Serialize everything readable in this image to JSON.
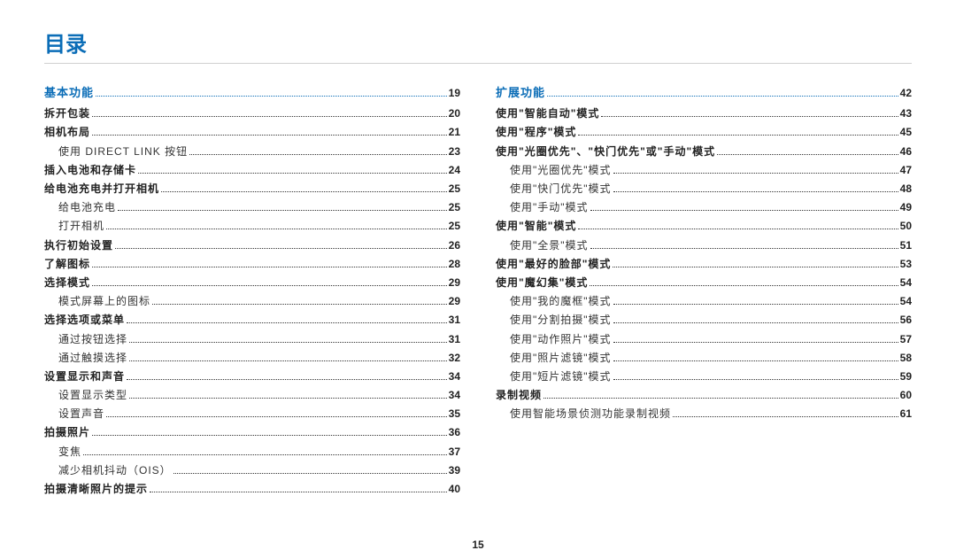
{
  "title": "目录",
  "page_number": "15",
  "colors": {
    "accent": "#0b6db7",
    "text": "#222222",
    "rule": "#d0d0d0",
    "background": "#ffffff"
  },
  "typography": {
    "title_fontsize_pt": 18,
    "section_fontsize_pt": 10,
    "entry_fontsize_pt": 9,
    "body_family": "Microsoft YaHei"
  },
  "columns": [
    {
      "section": {
        "label": "基本功能",
        "page": "19"
      },
      "items": [
        {
          "level": 1,
          "label": "拆开包装",
          "page": "20"
        },
        {
          "level": 1,
          "label": "相机布局",
          "page": "21"
        },
        {
          "level": 2,
          "label": "使用 DIRECT LINK 按钮",
          "page": "23"
        },
        {
          "level": 1,
          "label": "插入电池和存储卡",
          "page": "24"
        },
        {
          "level": 1,
          "label": "给电池充电并打开相机",
          "page": "25"
        },
        {
          "level": 2,
          "label": "给电池充电",
          "page": "25"
        },
        {
          "level": 2,
          "label": "打开相机",
          "page": "25"
        },
        {
          "level": 1,
          "label": "执行初始设置",
          "page": "26"
        },
        {
          "level": 1,
          "label": "了解图标",
          "page": "28"
        },
        {
          "level": 1,
          "label": "选择模式",
          "page": "29"
        },
        {
          "level": 2,
          "label": "模式屏幕上的图标",
          "page": "29"
        },
        {
          "level": 1,
          "label": "选择选项或菜单",
          "page": "31"
        },
        {
          "level": 2,
          "label": "通过按钮选择",
          "page": "31"
        },
        {
          "level": 2,
          "label": "通过触摸选择",
          "page": "32"
        },
        {
          "level": 1,
          "label": "设置显示和声音",
          "page": "34"
        },
        {
          "level": 2,
          "label": "设置显示类型",
          "page": "34"
        },
        {
          "level": 2,
          "label": "设置声音",
          "page": "35"
        },
        {
          "level": 1,
          "label": "拍摄照片",
          "page": "36"
        },
        {
          "level": 2,
          "label": "变焦",
          "page": "37"
        },
        {
          "level": 2,
          "label": "减少相机抖动（OIS）",
          "page": "39"
        },
        {
          "level": 1,
          "label": "拍摄清晰照片的提示",
          "page": "40"
        }
      ]
    },
    {
      "section": {
        "label": "扩展功能",
        "page": "42"
      },
      "items": [
        {
          "level": 1,
          "label": "使用\"智能自动\"模式",
          "page": "43"
        },
        {
          "level": 1,
          "label": "使用\"程序\"模式",
          "page": "45"
        },
        {
          "level": 1,
          "label": "使用\"光圈优先\"、\"快门优先\"或\"手动\"模式",
          "page": "46"
        },
        {
          "level": 2,
          "label": "使用\"光圈优先\"模式",
          "page": "47"
        },
        {
          "level": 2,
          "label": "使用\"快门优先\"模式",
          "page": "48"
        },
        {
          "level": 2,
          "label": "使用\"手动\"模式",
          "page": "49"
        },
        {
          "level": 1,
          "label": "使用\"智能\"模式",
          "page": "50"
        },
        {
          "level": 2,
          "label": "使用\"全景\"模式",
          "page": "51"
        },
        {
          "level": 1,
          "label": "使用\"最好的脸部\"模式",
          "page": "53"
        },
        {
          "level": 1,
          "label": "使用\"魔幻集\"模式",
          "page": "54"
        },
        {
          "level": 2,
          "label": "使用\"我的魔框\"模式",
          "page": "54"
        },
        {
          "level": 2,
          "label": "使用\"分割拍摄\"模式",
          "page": "56"
        },
        {
          "level": 2,
          "label": "使用\"动作照片\"模式",
          "page": "57"
        },
        {
          "level": 2,
          "label": "使用\"照片滤镜\"模式",
          "page": "58"
        },
        {
          "level": 2,
          "label": "使用\"短片滤镜\"模式",
          "page": "59"
        },
        {
          "level": 1,
          "label": "录制视频",
          "page": "60"
        },
        {
          "level": 2,
          "label": "使用智能场景侦测功能录制视频",
          "page": "61"
        }
      ]
    }
  ]
}
